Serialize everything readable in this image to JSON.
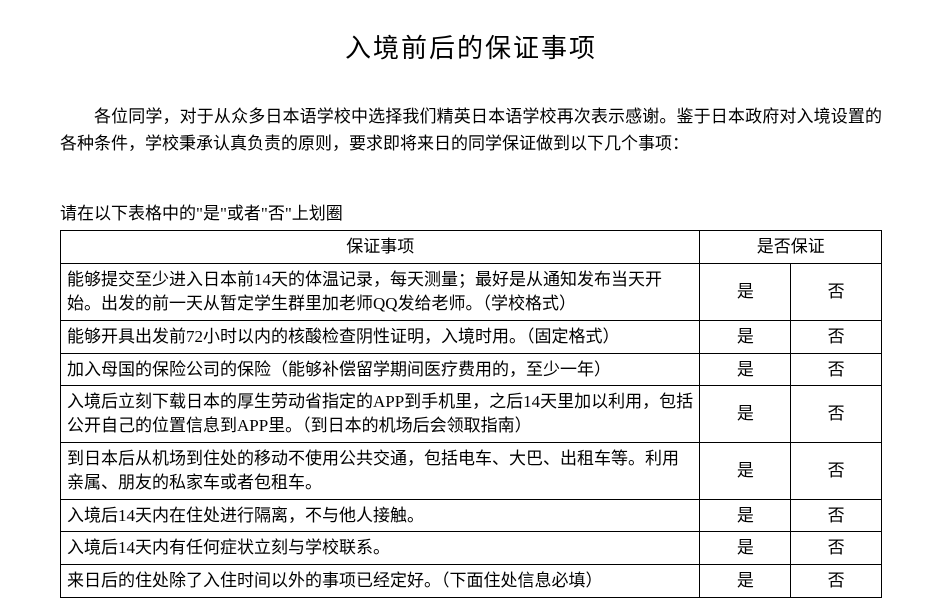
{
  "title": "入境前后的保证事项",
  "intro": "各位同学，对于从众多日本语学校中选择我们精英日本语学校再次表示感谢。鉴于日本政府对入境设置的各种条件，学校秉承认真负责的原则，要求即将来日的同学保证做到以下几个事项：",
  "instruction": "请在以下表格中的\"是\"或者\"否\"上划圈",
  "table": {
    "header_item": "保证事项",
    "header_guarantee": "是否保证",
    "yes": "是",
    "no": "否",
    "rows": [
      "能够提交至少进入日本前14天的体温记录，每天测量；最好是从通知发布当天开始。出发的前一天从暂定学生群里加老师QQ发给老师。（学校格式）",
      "能够开具出发前72小时以内的核酸检查阴性证明，入境时用。（固定格式）",
      "加入母国的保险公司的保险（能够补偿留学期间医疗费用的，至少一年）",
      "入境后立刻下载日本的厚生劳动省指定的APP到手机里，之后14天里加以利用，包括公开自己的位置信息到APP里。（到日本的机场后会领取指南）",
      "到日本后从机场到住处的移动不使用公共交通，包括电车、大巴、出租车等。利用亲属、朋友的私家车或者包租车。",
      "入境后14天内在住处进行隔离，不与他人接触。",
      "入境后14天内有任何症状立刻与学校联系。",
      "来日后的住处除了入住时间以外的事项已经定好。（下面住处信息必填）"
    ]
  }
}
